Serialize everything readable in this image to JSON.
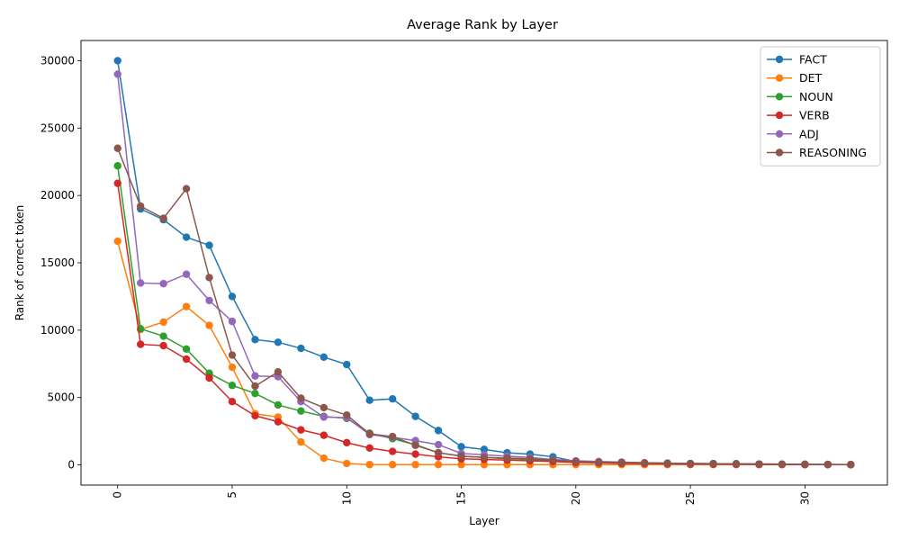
{
  "chart_data": {
    "type": "line",
    "title": "Average Rank by Layer",
    "xlabel": "Layer",
    "ylabel": "Rank of correct token",
    "xlim": [
      -1.6,
      33.6
    ],
    "ylim": [
      -1500,
      31500
    ],
    "xticks": [
      0,
      5,
      10,
      15,
      20,
      25,
      30
    ],
    "yticks": [
      0,
      5000,
      10000,
      15000,
      20000,
      25000,
      30000
    ],
    "grid": false,
    "legend_position": "top-right",
    "x": [
      0,
      1,
      2,
      3,
      4,
      5,
      6,
      7,
      8,
      9,
      10,
      11,
      12,
      13,
      14,
      15,
      16,
      17,
      18,
      19,
      20,
      21,
      22,
      23,
      24,
      25,
      26,
      27,
      28,
      29,
      30,
      31,
      32
    ],
    "series": [
      {
        "name": "FACT",
        "color": "#1f77b4",
        "values": [
          30000,
          19000,
          18200,
          16900,
          16300,
          12500,
          9300,
          9100,
          8650,
          8000,
          7450,
          4800,
          4900,
          3600,
          2550,
          1350,
          1150,
          900,
          800,
          600,
          250,
          200,
          200,
          150,
          120,
          100,
          90,
          80,
          60,
          50,
          40,
          30,
          20
        ]
      },
      {
        "name": "DET",
        "color": "#ff7f0e",
        "values": [
          16600,
          10050,
          10600,
          11750,
          10350,
          7250,
          3800,
          3550,
          1700,
          500,
          100,
          20,
          20,
          20,
          20,
          20,
          20,
          20,
          20,
          20,
          20,
          20,
          20,
          20,
          20,
          20,
          20,
          20,
          20,
          20,
          20,
          20,
          20
        ]
      },
      {
        "name": "NOUN",
        "color": "#2ca02c",
        "values": [
          22200,
          10100,
          9550,
          8600,
          6800,
          5900,
          5300,
          4450,
          4000,
          3600,
          3450,
          2350,
          1950,
          1500,
          900,
          650,
          550,
          450,
          400,
          300,
          250,
          200,
          180,
          150,
          120,
          100,
          90,
          80,
          60,
          50,
          40,
          30,
          20
        ]
      },
      {
        "name": "VERB",
        "color": "#d62728",
        "values": [
          20900,
          8950,
          8850,
          7850,
          6450,
          4700,
          3650,
          3200,
          2600,
          2200,
          1650,
          1250,
          1000,
          800,
          600,
          450,
          400,
          350,
          300,
          250,
          180,
          150,
          120,
          100,
          80,
          60,
          50,
          40,
          30,
          30,
          20,
          20,
          10
        ]
      },
      {
        "name": "ADJ",
        "color": "#9467bd",
        "values": [
          29000,
          13500,
          13450,
          14150,
          12200,
          10650,
          6600,
          6550,
          4700,
          3550,
          3500,
          2250,
          2050,
          1800,
          1500,
          850,
          750,
          650,
          550,
          400,
          300,
          250,
          200,
          150,
          120,
          100,
          90,
          80,
          60,
          50,
          40,
          30,
          20
        ]
      },
      {
        "name": "REASONING",
        "color": "#8c564b",
        "values": [
          23500,
          19200,
          18300,
          20500,
          13900,
          8150,
          5850,
          6900,
          4950,
          4250,
          3700,
          2300,
          2100,
          1450,
          900,
          650,
          550,
          500,
          450,
          350,
          250,
          200,
          180,
          150,
          120,
          100,
          90,
          80,
          60,
          50,
          40,
          30,
          20
        ]
      }
    ]
  }
}
